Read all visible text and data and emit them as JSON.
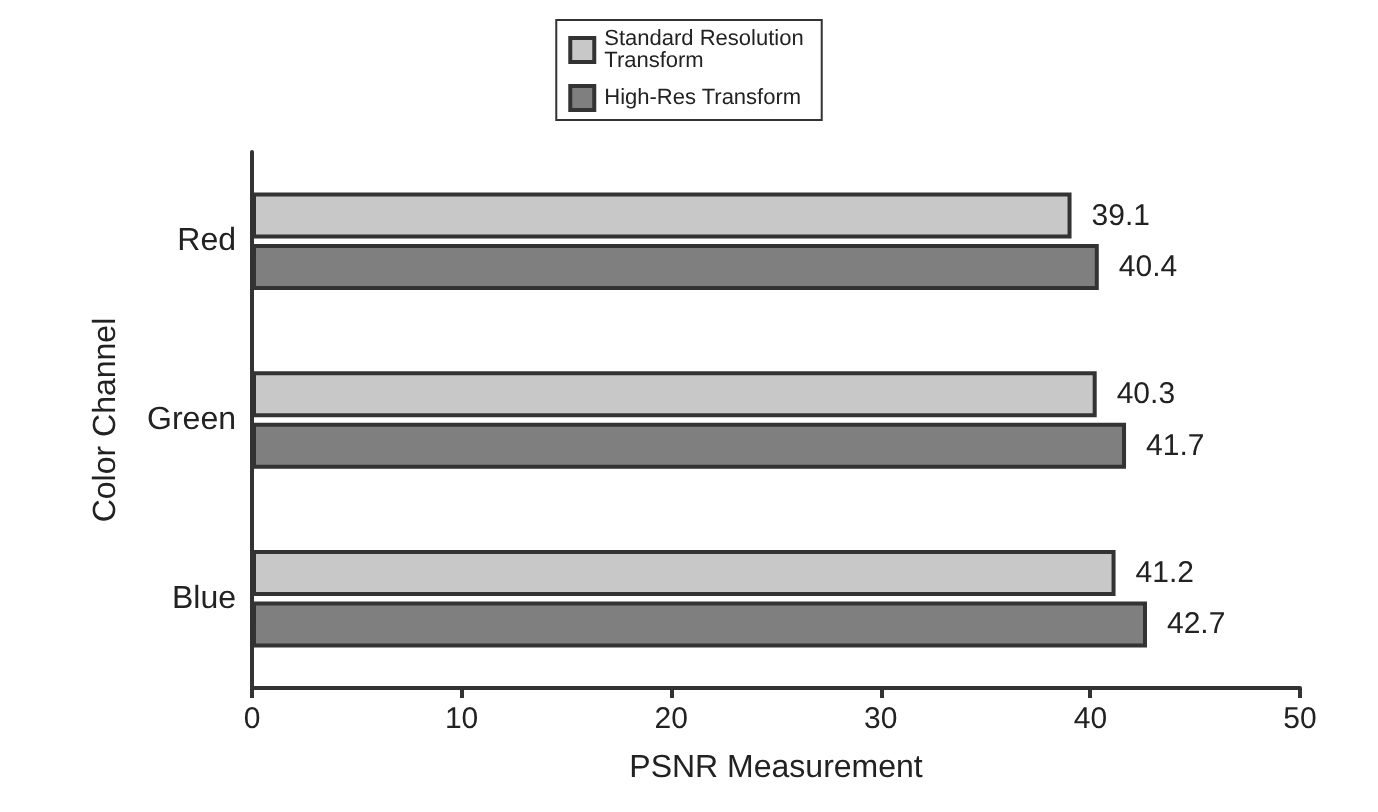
{
  "chart_data": {
    "type": "bar",
    "orientation": "horizontal",
    "categories": [
      "Red",
      "Green",
      "Blue"
    ],
    "series": [
      {
        "name": "Standard Resolution Transform",
        "color": "#c8c8c8",
        "values": [
          39.1,
          40.3,
          41.2
        ]
      },
      {
        "name": "High-Res Transform",
        "color": "#7f7f7f",
        "values": [
          40.4,
          41.7,
          42.7
        ]
      }
    ],
    "xlabel": "PSNR Measurement",
    "ylabel": "Color Channel",
    "xlim": [
      0,
      50
    ],
    "xticks": [
      0,
      10,
      20,
      30,
      40,
      50
    ],
    "data_labels": true,
    "grid": false,
    "legend": "top"
  }
}
